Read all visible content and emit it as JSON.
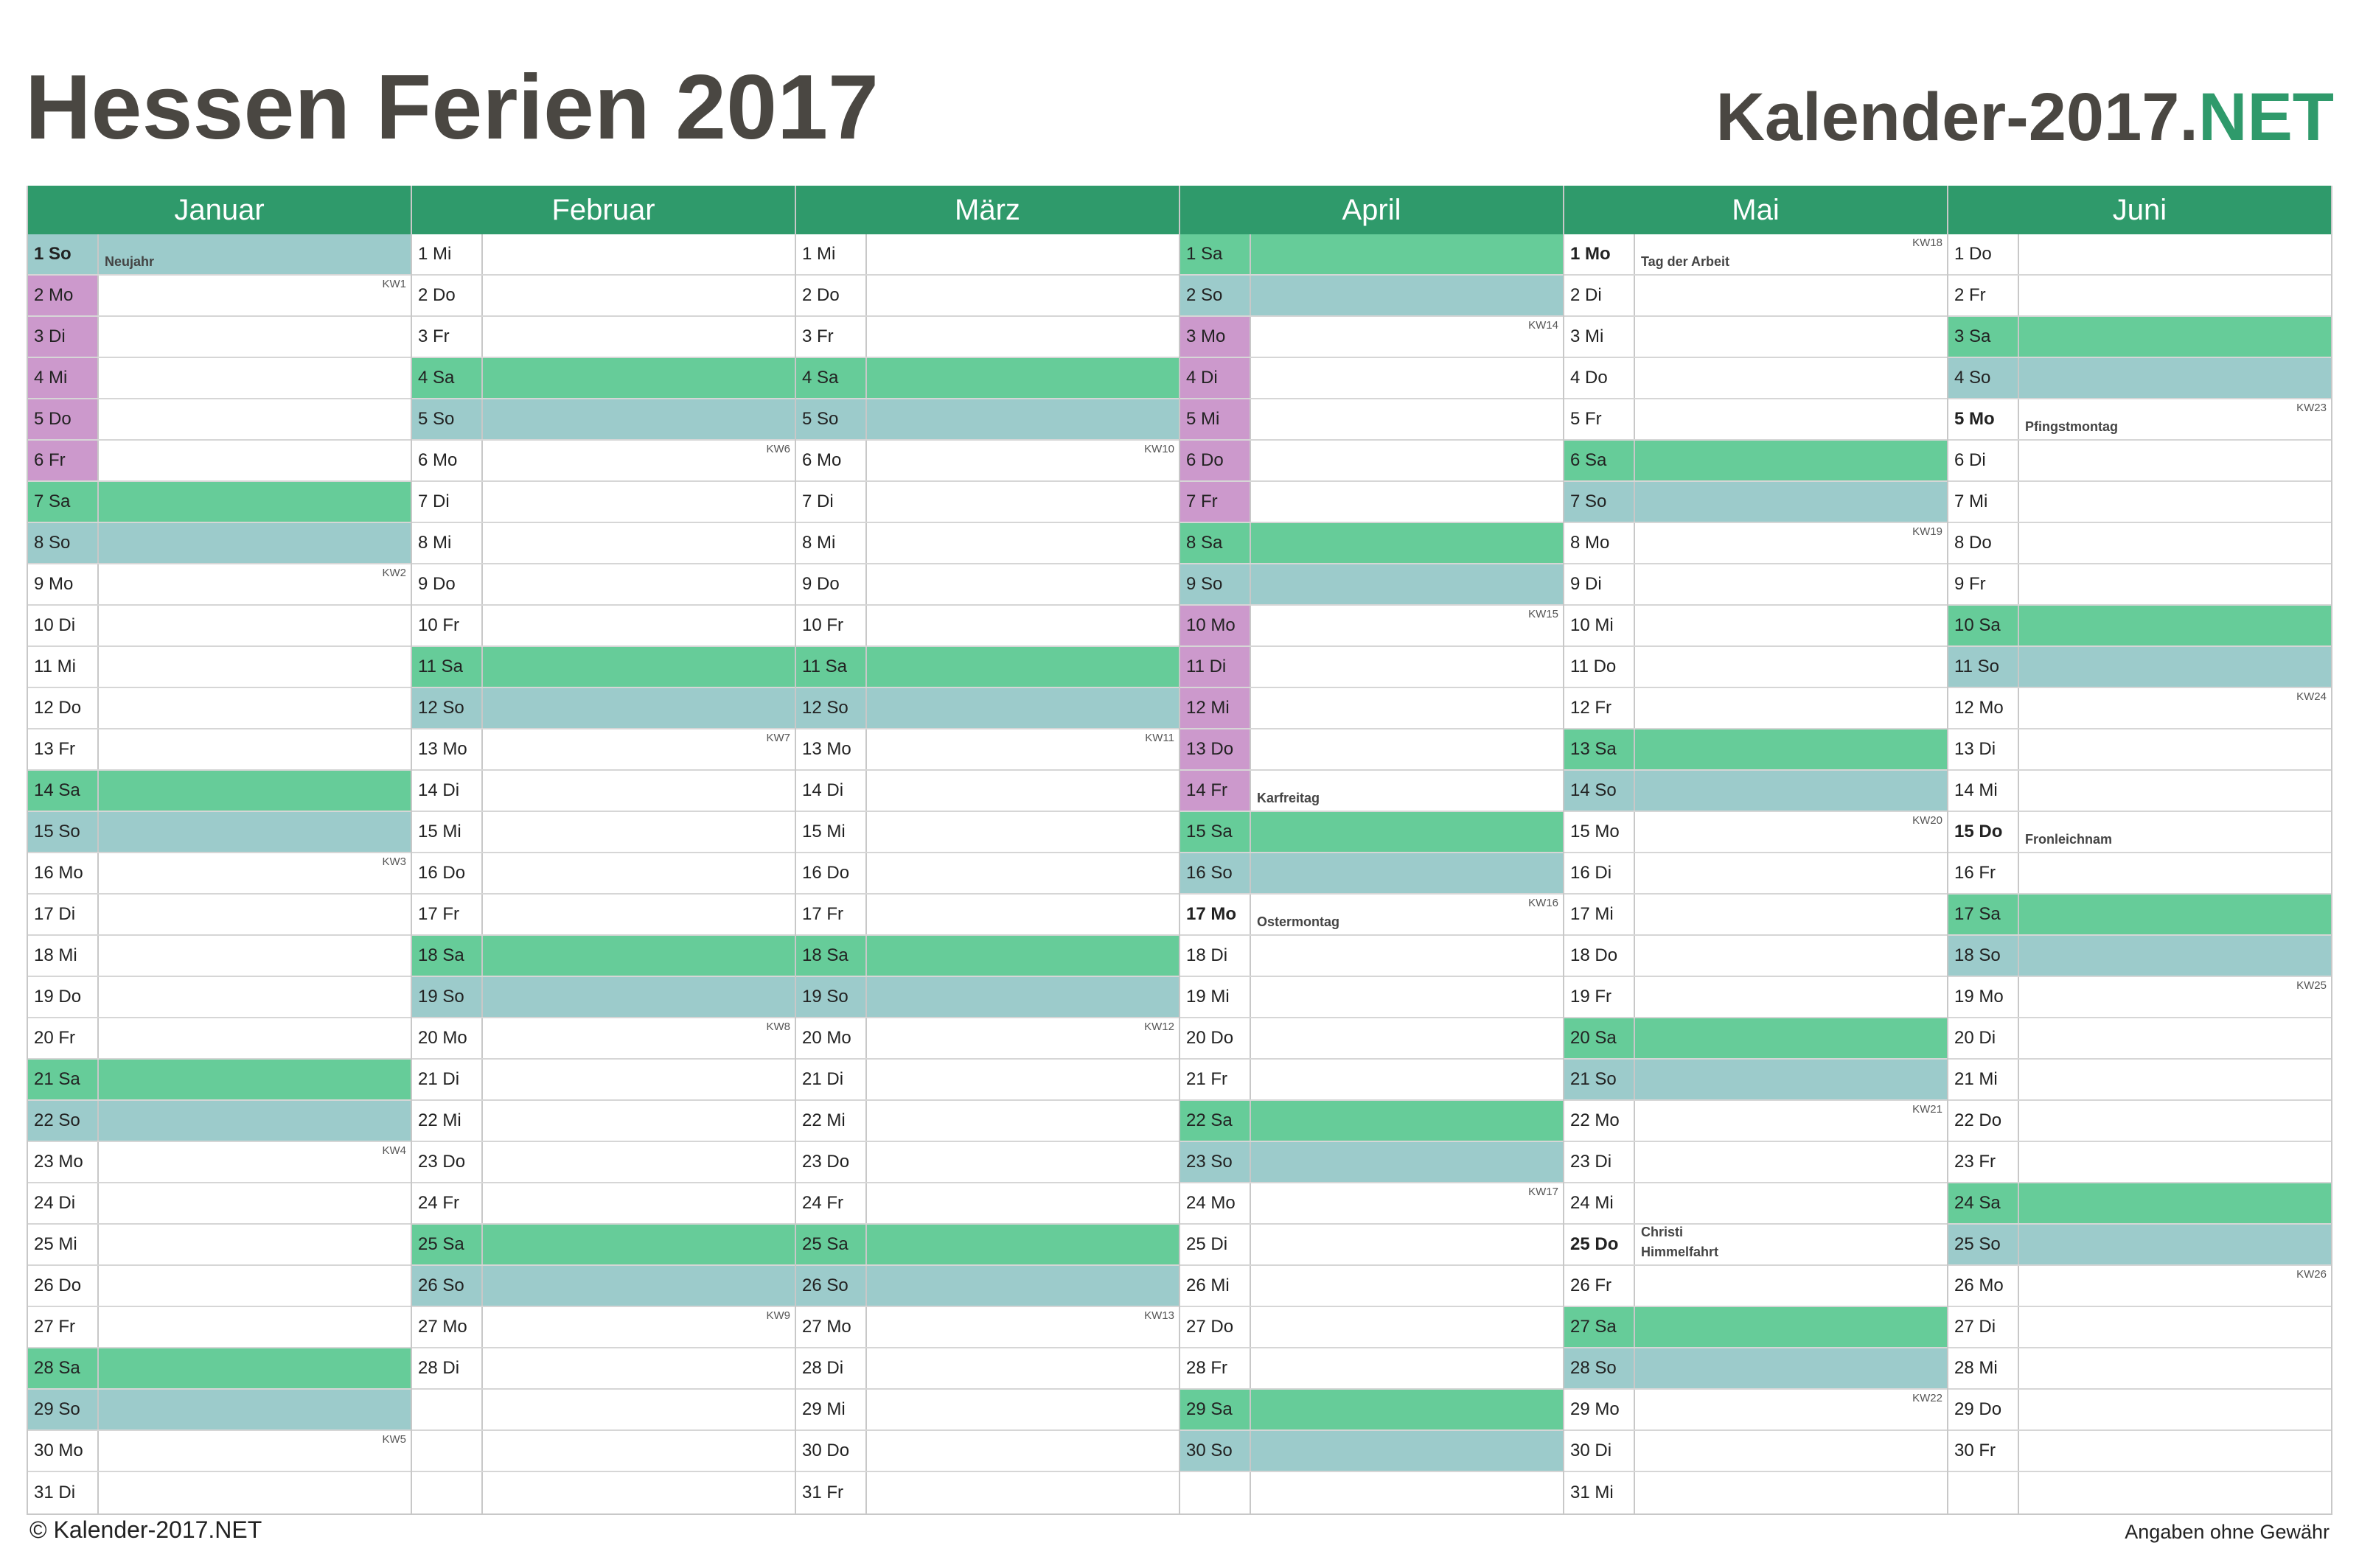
{
  "title": "Hessen Ferien 2017",
  "brand": {
    "main": "Kalender-2017.",
    "accent": "NET"
  },
  "footer": {
    "copyright": "© Kalender-2017.NET",
    "disclaimer": "Angaben ohne Gewähr"
  },
  "legend_colors": {
    "header": "#2f9a6b",
    "saturday": "#66cc99",
    "sunday": "#9ccbcb",
    "school_holiday": "#cc99cc"
  },
  "months": [
    {
      "name": "Januar",
      "days": [
        {
          "label": "1 So",
          "type": "so",
          "holiday": "Neujahr",
          "ft": true
        },
        {
          "label": "2 Mo",
          "type": "",
          "kw": "KW1",
          "fe": true
        },
        {
          "label": "3 Di",
          "type": "",
          "fe": true
        },
        {
          "label": "4 Mi",
          "type": "",
          "fe": true
        },
        {
          "label": "5 Do",
          "type": "",
          "fe": true
        },
        {
          "label": "6 Fr",
          "type": "",
          "fe": true
        },
        {
          "label": "7 Sa",
          "type": "sa"
        },
        {
          "label": "8 So",
          "type": "so"
        },
        {
          "label": "9 Mo",
          "type": "",
          "kw": "KW2"
        },
        {
          "label": "10 Di",
          "type": ""
        },
        {
          "label": "11 Mi",
          "type": ""
        },
        {
          "label": "12 Do",
          "type": ""
        },
        {
          "label": "13 Fr",
          "type": ""
        },
        {
          "label": "14 Sa",
          "type": "sa"
        },
        {
          "label": "15 So",
          "type": "so"
        },
        {
          "label": "16 Mo",
          "type": "",
          "kw": "KW3"
        },
        {
          "label": "17 Di",
          "type": ""
        },
        {
          "label": "18 Mi",
          "type": ""
        },
        {
          "label": "19 Do",
          "type": ""
        },
        {
          "label": "20 Fr",
          "type": ""
        },
        {
          "label": "21 Sa",
          "type": "sa"
        },
        {
          "label": "22 So",
          "type": "so"
        },
        {
          "label": "23 Mo",
          "type": "",
          "kw": "KW4"
        },
        {
          "label": "24 Di",
          "type": ""
        },
        {
          "label": "25 Mi",
          "type": ""
        },
        {
          "label": "26 Do",
          "type": ""
        },
        {
          "label": "27 Fr",
          "type": ""
        },
        {
          "label": "28 Sa",
          "type": "sa"
        },
        {
          "label": "29 So",
          "type": "so"
        },
        {
          "label": "30 Mo",
          "type": "",
          "kw": "KW5"
        },
        {
          "label": "31 Di",
          "type": ""
        }
      ]
    },
    {
      "name": "Februar",
      "days": [
        {
          "label": "1 Mi",
          "type": ""
        },
        {
          "label": "2 Do",
          "type": ""
        },
        {
          "label": "3 Fr",
          "type": ""
        },
        {
          "label": "4 Sa",
          "type": "sa"
        },
        {
          "label": "5 So",
          "type": "so"
        },
        {
          "label": "6 Mo",
          "type": "",
          "kw": "KW6"
        },
        {
          "label": "7 Di",
          "type": ""
        },
        {
          "label": "8 Mi",
          "type": ""
        },
        {
          "label": "9 Do",
          "type": ""
        },
        {
          "label": "10 Fr",
          "type": ""
        },
        {
          "label": "11 Sa",
          "type": "sa"
        },
        {
          "label": "12 So",
          "type": "so"
        },
        {
          "label": "13 Mo",
          "type": "",
          "kw": "KW7"
        },
        {
          "label": "14 Di",
          "type": ""
        },
        {
          "label": "15 Mi",
          "type": ""
        },
        {
          "label": "16 Do",
          "type": ""
        },
        {
          "label": "17 Fr",
          "type": ""
        },
        {
          "label": "18 Sa",
          "type": "sa"
        },
        {
          "label": "19 So",
          "type": "so"
        },
        {
          "label": "20 Mo",
          "type": "",
          "kw": "KW8"
        },
        {
          "label": "21 Di",
          "type": ""
        },
        {
          "label": "22 Mi",
          "type": ""
        },
        {
          "label": "23 Do",
          "type": ""
        },
        {
          "label": "24 Fr",
          "type": ""
        },
        {
          "label": "25 Sa",
          "type": "sa"
        },
        {
          "label": "26 So",
          "type": "so"
        },
        {
          "label": "27 Mo",
          "type": "",
          "kw": "KW9"
        },
        {
          "label": "28 Di",
          "type": ""
        },
        {
          "label": "",
          "type": "blank"
        },
        {
          "label": "",
          "type": "blank"
        },
        {
          "label": "",
          "type": "blank"
        }
      ]
    },
    {
      "name": "März",
      "days": [
        {
          "label": "1 Mi",
          "type": ""
        },
        {
          "label": "2 Do",
          "type": ""
        },
        {
          "label": "3 Fr",
          "type": ""
        },
        {
          "label": "4 Sa",
          "type": "sa"
        },
        {
          "label": "5 So",
          "type": "so"
        },
        {
          "label": "6 Mo",
          "type": "",
          "kw": "KW10"
        },
        {
          "label": "7 Di",
          "type": ""
        },
        {
          "label": "8 Mi",
          "type": ""
        },
        {
          "label": "9 Do",
          "type": ""
        },
        {
          "label": "10 Fr",
          "type": ""
        },
        {
          "label": "11 Sa",
          "type": "sa"
        },
        {
          "label": "12 So",
          "type": "so"
        },
        {
          "label": "13 Mo",
          "type": "",
          "kw": "KW11"
        },
        {
          "label": "14 Di",
          "type": ""
        },
        {
          "label": "15 Mi",
          "type": ""
        },
        {
          "label": "16 Do",
          "type": ""
        },
        {
          "label": "17 Fr",
          "type": ""
        },
        {
          "label": "18 Sa",
          "type": "sa"
        },
        {
          "label": "19 So",
          "type": "so"
        },
        {
          "label": "20 Mo",
          "type": "",
          "kw": "KW12"
        },
        {
          "label": "21 Di",
          "type": ""
        },
        {
          "label": "22 Mi",
          "type": ""
        },
        {
          "label": "23 Do",
          "type": ""
        },
        {
          "label": "24 Fr",
          "type": ""
        },
        {
          "label": "25 Sa",
          "type": "sa"
        },
        {
          "label": "26 So",
          "type": "so"
        },
        {
          "label": "27 Mo",
          "type": "",
          "kw": "KW13"
        },
        {
          "label": "28 Di",
          "type": ""
        },
        {
          "label": "29 Mi",
          "type": ""
        },
        {
          "label": "30 Do",
          "type": ""
        },
        {
          "label": "31 Fr",
          "type": ""
        }
      ]
    },
    {
      "name": "April",
      "days": [
        {
          "label": "1 Sa",
          "type": "sa"
        },
        {
          "label": "2 So",
          "type": "so"
        },
        {
          "label": "3 Mo",
          "type": "",
          "kw": "KW14",
          "fe": true
        },
        {
          "label": "4 Di",
          "type": "",
          "fe": true
        },
        {
          "label": "5 Mi",
          "type": "",
          "fe": true
        },
        {
          "label": "6 Do",
          "type": "",
          "fe": true
        },
        {
          "label": "7 Fr",
          "type": "",
          "fe": true
        },
        {
          "label": "8 Sa",
          "type": "sa"
        },
        {
          "label": "9 So",
          "type": "so"
        },
        {
          "label": "10 Mo",
          "type": "",
          "kw": "KW15",
          "fe": true
        },
        {
          "label": "11 Di",
          "type": "",
          "fe": true
        },
        {
          "label": "12 Mi",
          "type": "",
          "fe": true
        },
        {
          "label": "13 Do",
          "type": "",
          "fe": true
        },
        {
          "label": "14 Fr",
          "type": "",
          "fe": true,
          "holiday": "Karfreitag"
        },
        {
          "label": "15 Sa",
          "type": "sa"
        },
        {
          "label": "16 So",
          "type": "so"
        },
        {
          "label": "17 Mo",
          "type": "",
          "kw": "KW16",
          "holiday": "Ostermontag",
          "ft": true
        },
        {
          "label": "18 Di",
          "type": ""
        },
        {
          "label": "19 Mi",
          "type": ""
        },
        {
          "label": "20 Do",
          "type": ""
        },
        {
          "label": "21 Fr",
          "type": ""
        },
        {
          "label": "22 Sa",
          "type": "sa"
        },
        {
          "label": "23 So",
          "type": "so"
        },
        {
          "label": "24 Mo",
          "type": "",
          "kw": "KW17"
        },
        {
          "label": "25 Di",
          "type": ""
        },
        {
          "label": "26 Mi",
          "type": ""
        },
        {
          "label": "27 Do",
          "type": ""
        },
        {
          "label": "28 Fr",
          "type": ""
        },
        {
          "label": "29 Sa",
          "type": "sa"
        },
        {
          "label": "30 So",
          "type": "so"
        },
        {
          "label": "",
          "type": "blank"
        }
      ]
    },
    {
      "name": "Mai",
      "days": [
        {
          "label": "1 Mo",
          "type": "",
          "kw": "KW18",
          "holiday": "Tag der Arbeit",
          "ft": true
        },
        {
          "label": "2 Di",
          "type": ""
        },
        {
          "label": "3 Mi",
          "type": ""
        },
        {
          "label": "4 Do",
          "type": ""
        },
        {
          "label": "5 Fr",
          "type": ""
        },
        {
          "label": "6 Sa",
          "type": "sa"
        },
        {
          "label": "7 So",
          "type": "so"
        },
        {
          "label": "8 Mo",
          "type": "",
          "kw": "KW19"
        },
        {
          "label": "9 Di",
          "type": ""
        },
        {
          "label": "10 Mi",
          "type": ""
        },
        {
          "label": "11 Do",
          "type": ""
        },
        {
          "label": "12 Fr",
          "type": ""
        },
        {
          "label": "13 Sa",
          "type": "sa"
        },
        {
          "label": "14 So",
          "type": "so"
        },
        {
          "label": "15 Mo",
          "type": "",
          "kw": "KW20"
        },
        {
          "label": "16 Di",
          "type": ""
        },
        {
          "label": "17 Mi",
          "type": ""
        },
        {
          "label": "18 Do",
          "type": ""
        },
        {
          "label": "19 Fr",
          "type": ""
        },
        {
          "label": "20 Sa",
          "type": "sa"
        },
        {
          "label": "21 So",
          "type": "so"
        },
        {
          "label": "22 Mo",
          "type": "",
          "kw": "KW21"
        },
        {
          "label": "23 Di",
          "type": ""
        },
        {
          "label": "24 Mi",
          "type": ""
        },
        {
          "label": "25 Do",
          "type": "",
          "holiday": "Christi Himmelfahrt",
          "ft": true
        },
        {
          "label": "26 Fr",
          "type": ""
        },
        {
          "label": "27 Sa",
          "type": "sa"
        },
        {
          "label": "28 So",
          "type": "so"
        },
        {
          "label": "29 Mo",
          "type": "",
          "kw": "KW22"
        },
        {
          "label": "30 Di",
          "type": ""
        },
        {
          "label": "31 Mi",
          "type": ""
        }
      ]
    },
    {
      "name": "Juni",
      "days": [
        {
          "label": "1 Do",
          "type": ""
        },
        {
          "label": "2 Fr",
          "type": ""
        },
        {
          "label": "3 Sa",
          "type": "sa"
        },
        {
          "label": "4 So",
          "type": "so"
        },
        {
          "label": "5 Mo",
          "type": "",
          "kw": "KW23",
          "holiday": "Pfingstmontag",
          "ft": true
        },
        {
          "label": "6 Di",
          "type": ""
        },
        {
          "label": "7 Mi",
          "type": ""
        },
        {
          "label": "8 Do",
          "type": ""
        },
        {
          "label": "9 Fr",
          "type": ""
        },
        {
          "label": "10 Sa",
          "type": "sa"
        },
        {
          "label": "11 So",
          "type": "so"
        },
        {
          "label": "12 Mo",
          "type": "",
          "kw": "KW24"
        },
        {
          "label": "13 Di",
          "type": ""
        },
        {
          "label": "14 Mi",
          "type": ""
        },
        {
          "label": "15 Do",
          "type": "",
          "holiday": "Fronleichnam",
          "ft": true
        },
        {
          "label": "16 Fr",
          "type": ""
        },
        {
          "label": "17 Sa",
          "type": "sa"
        },
        {
          "label": "18 So",
          "type": "so"
        },
        {
          "label": "19 Mo",
          "type": "",
          "kw": "KW25"
        },
        {
          "label": "20 Di",
          "type": ""
        },
        {
          "label": "21 Mi",
          "type": ""
        },
        {
          "label": "22 Do",
          "type": ""
        },
        {
          "label": "23 Fr",
          "type": ""
        },
        {
          "label": "24 Sa",
          "type": "sa"
        },
        {
          "label": "25 So",
          "type": "so"
        },
        {
          "label": "26 Mo",
          "type": "",
          "kw": "KW26"
        },
        {
          "label": "27 Di",
          "type": ""
        },
        {
          "label": "28 Mi",
          "type": ""
        },
        {
          "label": "29 Do",
          "type": ""
        },
        {
          "label": "30 Fr",
          "type": ""
        },
        {
          "label": "",
          "type": "blank"
        }
      ]
    }
  ]
}
